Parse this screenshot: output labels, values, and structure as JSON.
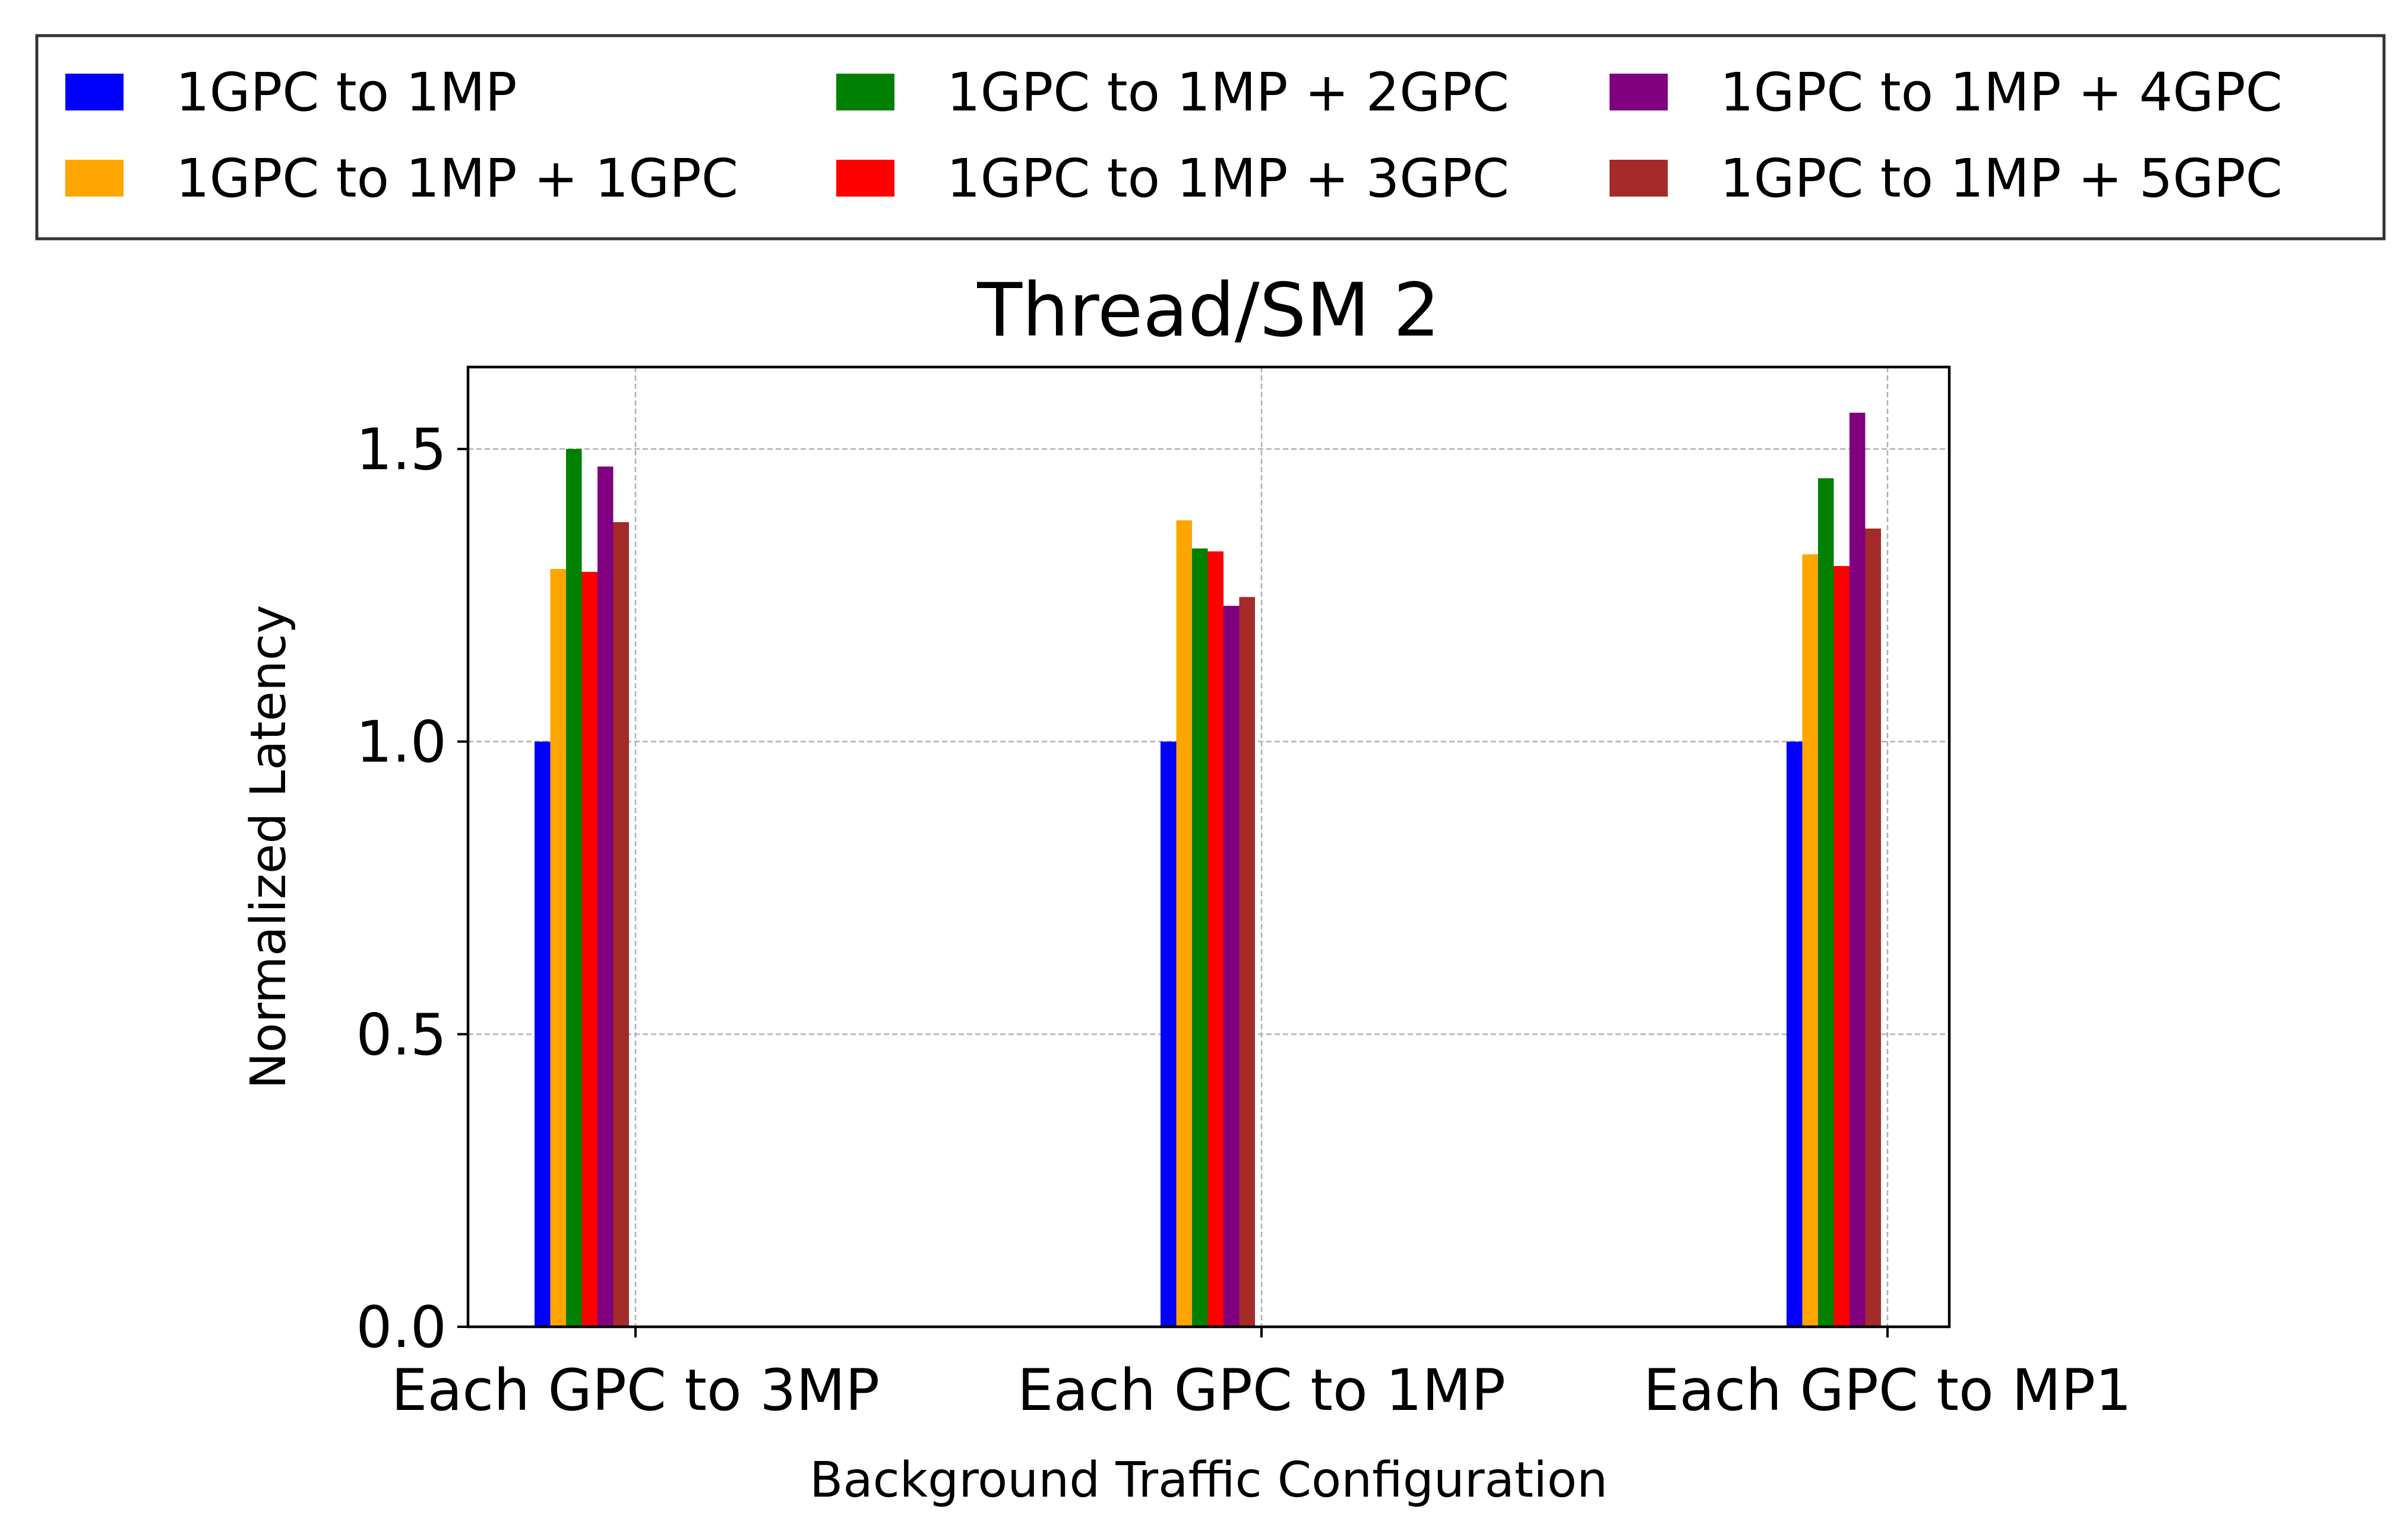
{
  "chart_data": {
    "type": "bar",
    "title": "Thread/SM 2",
    "xlabel": "Background Traffic Configuration",
    "ylabel": "Normalized Latency",
    "categories": [
      "Each GPC to 3MP",
      "Each GPC to 1MP",
      "Each GPC to MP1"
    ],
    "ylim": [
      0,
      1.64
    ],
    "yticks": [
      {
        "value": 0.0,
        "label": "0.0"
      },
      {
        "value": 0.5,
        "label": "0.5"
      },
      {
        "value": 1.0,
        "label": "1.0"
      },
      {
        "value": 1.5,
        "label": "1.5"
      }
    ],
    "grid": true,
    "legend_placement": "top",
    "series": [
      {
        "name": "1GPC to 1MP",
        "color": "#0000ff",
        "values": [
          1.0,
          1.0,
          1.0
        ]
      },
      {
        "name": "1GPC to 1MP + 1GPC",
        "color": "#ffa500",
        "values": [
          1.295,
          1.378,
          1.32
        ]
      },
      {
        "name": "1GPC to 1MP + 2GPC",
        "color": "#008000",
        "values": [
          1.5,
          1.33,
          1.45
        ]
      },
      {
        "name": "1GPC to 1MP + 3GPC",
        "color": "#ff0000",
        "values": [
          1.29,
          1.325,
          1.3
        ]
      },
      {
        "name": "1GPC to 1MP + 4GPC",
        "color": "#800080",
        "values": [
          1.47,
          1.232,
          1.562
        ]
      },
      {
        "name": "1GPC to 1MP + 5GPC",
        "color": "#a52a2a",
        "values": [
          1.375,
          1.247,
          1.364
        ]
      }
    ]
  }
}
